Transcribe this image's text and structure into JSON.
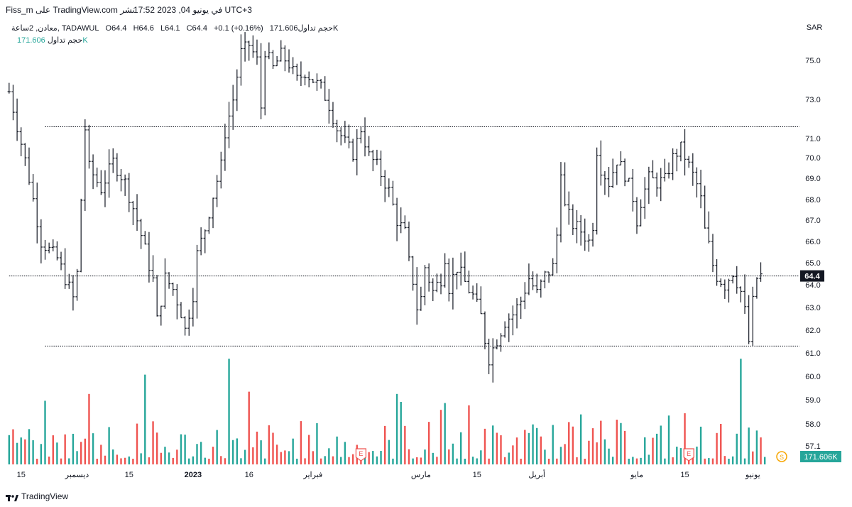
{
  "header": {
    "left_text": "Fiss_m على TradingView.com نشر",
    "datetime": "في يونيو 04, 2023 17:52 UTC+3"
  },
  "legend": {
    "symbol": "معادن, 2ساعة, TADAWUL",
    "open": "O64.4",
    "high": "H64.6",
    "low": "L64.1",
    "close": "C64.4",
    "change": "+0.1 (+0.16%)",
    "volume_inline": "حجم تداول171.606K",
    "volume_label": "حجم تداول",
    "volume_value": "171.606K"
  },
  "colors": {
    "bar": "#131722",
    "vol_up": "#26a69a",
    "vol_down": "#ef5350",
    "grid_line": "#131722",
    "price_tag_bg": "#131722",
    "volume_tag_bg": "#26a69a",
    "session_icon": "#f7a600"
  },
  "chart_data": {
    "type": "ohlc",
    "title": "معادن, 2ساعة, TADAWUL",
    "currency": "SAR",
    "ylim": [
      57.1,
      76.9
    ],
    "y_ticks": [
      75.0,
      73.0,
      71.0,
      70.0,
      69.0,
      68.0,
      67.0,
      66.0,
      65.0,
      64.0,
      63.0,
      62.0,
      61.0,
      60.0,
      59.0,
      58.0,
      57.1
    ],
    "y_tick_labels": [
      "75.0",
      "73.0",
      "71.0",
      "70.0",
      "69.0",
      "68.0",
      "67.0",
      "66.0",
      "65.0",
      "64.0",
      "63.0",
      "62.0",
      "61.0",
      "60.0",
      "59.0",
      "58.0",
      "57.1"
    ],
    "x_tick_labels": [
      "15",
      "ديسمبر",
      "15",
      "2023",
      "16",
      "فبراير",
      "مارس",
      "15",
      "أبريل",
      "مايو",
      "15",
      "يونيو"
    ],
    "x_tick_index": [
      3,
      17,
      30,
      46,
      60,
      76,
      103,
      117,
      132,
      157,
      169,
      186
    ],
    "bar_count": 190,
    "path_points": [
      [
        0,
        73.4
      ],
      [
        5,
        69.0
      ],
      [
        8,
        66.0
      ],
      [
        12,
        65.2
      ],
      [
        14,
        64.3
      ],
      [
        16,
        63.4
      ],
      [
        17,
        64.5
      ],
      [
        19,
        71.5
      ],
      [
        20,
        69.5
      ],
      [
        23,
        68.5
      ],
      [
        26,
        69.8
      ],
      [
        29,
        68.8
      ],
      [
        32,
        67.0
      ],
      [
        34,
        65.6
      ],
      [
        36,
        64.2
      ],
      [
        37,
        62.4
      ],
      [
        39,
        64.3
      ],
      [
        41,
        63.8
      ],
      [
        43,
        62.8
      ],
      [
        44,
        62.0
      ],
      [
        46,
        63.6
      ],
      [
        47,
        65.4
      ],
      [
        49,
        66.6
      ],
      [
        51,
        68.2
      ],
      [
        53,
        69.6
      ],
      [
        54,
        71.3
      ],
      [
        56,
        73.0
      ],
      [
        58,
        75.4
      ],
      [
        60,
        75.8
      ],
      [
        62,
        75.0
      ],
      [
        63,
        72.6
      ],
      [
        64,
        75.5
      ],
      [
        66,
        74.6
      ],
      [
        68,
        75.3
      ],
      [
        70,
        74.8
      ],
      [
        72,
        74.0
      ],
      [
        74,
        74.4
      ],
      [
        76,
        74.0
      ],
      [
        78,
        73.6
      ],
      [
        80,
        72.7
      ],
      [
        82,
        71.5
      ],
      [
        84,
        70.8
      ],
      [
        86,
        70.2
      ],
      [
        88,
        71.5
      ],
      [
        90,
        70.1
      ],
      [
        92,
        69.6
      ],
      [
        95,
        68.4
      ],
      [
        97,
        67.0
      ],
      [
        99,
        66.4
      ],
      [
        100,
        65.0
      ],
      [
        101,
        64.2
      ],
      [
        102,
        63.0
      ],
      [
        103,
        63.4
      ],
      [
        104,
        64.8
      ],
      [
        106,
        63.7
      ],
      [
        108,
        64.3
      ],
      [
        109,
        65.3
      ],
      [
        110,
        63.9
      ],
      [
        112,
        64.8
      ],
      [
        114,
        64.1
      ],
      [
        116,
        63.5
      ],
      [
        118,
        62.6
      ],
      [
        119,
        61.6
      ],
      [
        120,
        60.8
      ],
      [
        122,
        61.6
      ],
      [
        124,
        62.4
      ],
      [
        126,
        62.7
      ],
      [
        128,
        63.3
      ],
      [
        130,
        64.3
      ],
      [
        132,
        63.6
      ],
      [
        134,
        64.4
      ],
      [
        136,
        64.8
      ],
      [
        137,
        66.3
      ],
      [
        138,
        69.5
      ],
      [
        139,
        67.6
      ],
      [
        141,
        66.8
      ],
      [
        143,
        66.5
      ],
      [
        145,
        66.0
      ],
      [
        146,
        66.8
      ],
      [
        147,
        70.4
      ],
      [
        148,
        69.5
      ],
      [
        150,
        68.8
      ],
      [
        152,
        69.9
      ],
      [
        154,
        69.2
      ],
      [
        156,
        68.1
      ],
      [
        157,
        67.0
      ],
      [
        158,
        67.9
      ],
      [
        160,
        69.0
      ],
      [
        162,
        68.8
      ],
      [
        164,
        68.9
      ],
      [
        166,
        70.0
      ],
      [
        168,
        70.5
      ],
      [
        170,
        69.6
      ],
      [
        172,
        68.7
      ],
      [
        173,
        68.0
      ],
      [
        174,
        66.5
      ],
      [
        175,
        65.8
      ],
      [
        176,
        64.9
      ],
      [
        177,
        64.4
      ],
      [
        179,
        64.0
      ],
      [
        181,
        64.6
      ],
      [
        183,
        63.7
      ],
      [
        184,
        62.8
      ],
      [
        185,
        61.5
      ],
      [
        186,
        63.2
      ],
      [
        187,
        64.3
      ],
      [
        188,
        64.4
      ]
    ],
    "level_lines": [
      {
        "price": 71.6,
        "start_index": 9,
        "label": ""
      },
      {
        "price": 64.4,
        "start_index": 0,
        "label": "64.4"
      },
      {
        "price": 61.3,
        "start_index": 9,
        "label": ""
      }
    ],
    "current_price": 64.4,
    "current_price_label": "64.4",
    "volume": {
      "label": "171.606K",
      "count": 190,
      "spikes": [
        {
          "index": 9,
          "frac": 0.56
        },
        {
          "index": 20,
          "frac": 0.62
        },
        {
          "index": 34,
          "frac": 0.79
        },
        {
          "index": 55,
          "frac": 0.93
        },
        {
          "index": 60,
          "frac": 0.64
        },
        {
          "index": 97,
          "frac": 0.62
        },
        {
          "index": 98,
          "frac": 0.55
        },
        {
          "index": 108,
          "frac": 0.48
        },
        {
          "index": 109,
          "frac": 0.54
        },
        {
          "index": 115,
          "frac": 0.52
        },
        {
          "index": 143,
          "frac": 0.44
        },
        {
          "index": 165,
          "frac": 0.43
        },
        {
          "index": 183,
          "frac": 0.93
        },
        {
          "index": 169,
          "frac": 0.45
        }
      ]
    },
    "event_markers": [
      {
        "index": 88,
        "label": "E"
      },
      {
        "index": 170,
        "label": "E"
      }
    ],
    "session_marker": {
      "label": "S"
    }
  },
  "footer": {
    "brand": "TradingView"
  }
}
